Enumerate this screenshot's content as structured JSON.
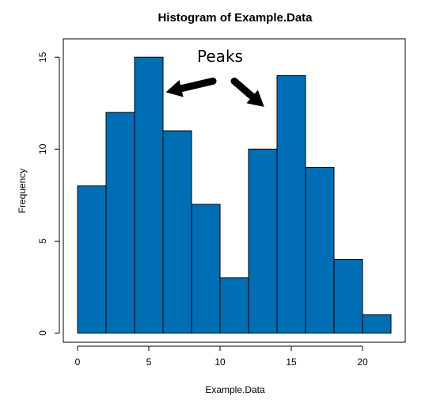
{
  "chart_data": {
    "type": "bar",
    "title": "Histogram of Example.Data",
    "xlabel": "Example.Data",
    "ylabel": "Frequency",
    "bin_edges": [
      0,
      2,
      4,
      6,
      8,
      10,
      12,
      14,
      16,
      18,
      20,
      22
    ],
    "values": [
      8,
      12,
      15,
      11,
      7,
      3,
      10,
      14,
      9,
      4,
      1
    ],
    "xlim": [
      -1,
      23
    ],
    "ylim": [
      -0.5,
      16
    ],
    "x_ticks": [
      0,
      5,
      10,
      15,
      20
    ],
    "y_ticks": [
      0,
      5,
      10,
      15
    ],
    "bar_color": "#006EB4",
    "annotation": {
      "text": "Peaks",
      "arrows": [
        {
          "from": [
            9.5,
            13.7
          ],
          "to": [
            6.2,
            13.1
          ]
        },
        {
          "from": [
            11.0,
            13.7
          ],
          "to": [
            13.1,
            12.3
          ]
        }
      ]
    }
  }
}
